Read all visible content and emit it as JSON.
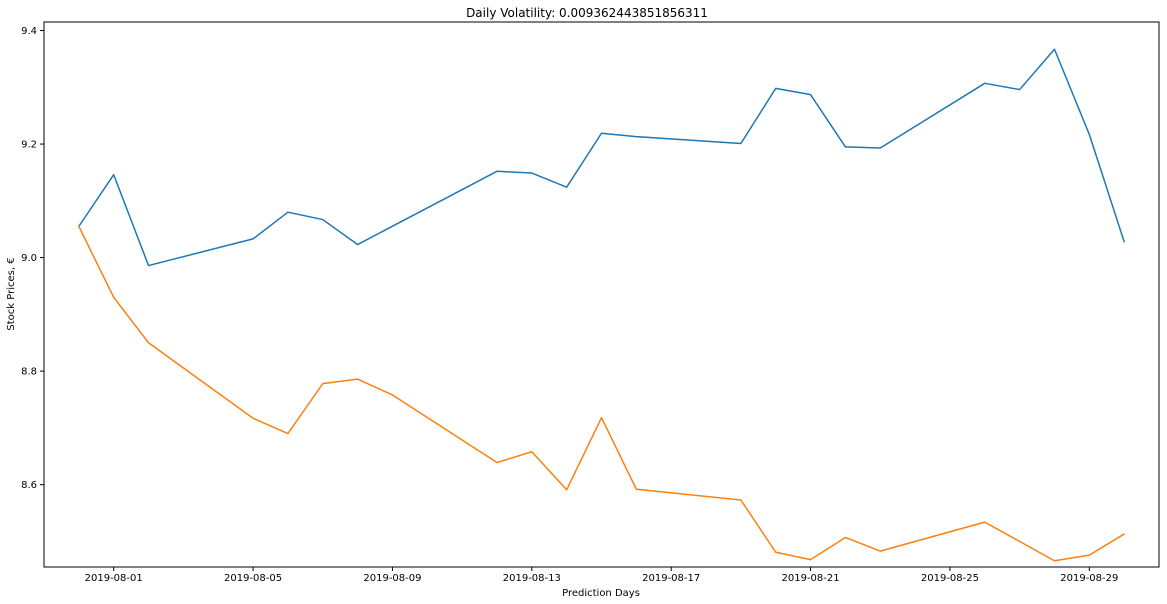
{
  "chart_data": {
    "type": "line",
    "title": "Daily Volatility: 0.009362443851856311",
    "xlabel": "Prediction Days",
    "ylabel": "Stock Prices, €",
    "x_axis_type": "date",
    "xlim": [
      "2019-07-30",
      "2019-08-31"
    ],
    "ylim": [
      8.455,
      9.415
    ],
    "x_ticks": [
      "2019-08-01",
      "2019-08-05",
      "2019-08-09",
      "2019-08-13",
      "2019-08-17",
      "2019-08-21",
      "2019-08-25",
      "2019-08-29"
    ],
    "x_tick_labels": [
      "2019-08-01",
      "2019-08-05",
      "2019-08-09",
      "2019-08-13",
      "2019-08-17",
      "2019-08-21",
      "2019-08-25",
      "2019-08-29"
    ],
    "y_ticks": [
      8.6,
      8.8,
      9.0,
      9.2,
      9.4
    ],
    "y_tick_labels": [
      "8.6",
      "8.8",
      "9.0",
      "9.2",
      "9.4"
    ],
    "grid": false,
    "legend": "none",
    "series": [
      {
        "color": "#1f77b4",
        "points": [
          {
            "x": "2019-07-31",
            "y": 9.055
          },
          {
            "x": "2019-08-01",
            "y": 9.146
          },
          {
            "x": "2019-08-02",
            "y": 8.986
          },
          {
            "x": "2019-08-05",
            "y": 9.033
          },
          {
            "x": "2019-08-06",
            "y": 9.08
          },
          {
            "x": "2019-08-07",
            "y": 9.067
          },
          {
            "x": "2019-08-08",
            "y": 9.023
          },
          {
            "x": "2019-08-12",
            "y": 9.152
          },
          {
            "x": "2019-08-13",
            "y": 9.149
          },
          {
            "x": "2019-08-14",
            "y": 9.124
          },
          {
            "x": "2019-08-15",
            "y": 9.219
          },
          {
            "x": "2019-08-16",
            "y": 9.213
          },
          {
            "x": "2019-08-19",
            "y": 9.201
          },
          {
            "x": "2019-08-20",
            "y": 9.298
          },
          {
            "x": "2019-08-21",
            "y": 9.287
          },
          {
            "x": "2019-08-22",
            "y": 9.195
          },
          {
            "x": "2019-08-23",
            "y": 9.193
          },
          {
            "x": "2019-08-26",
            "y": 9.307
          },
          {
            "x": "2019-08-27",
            "y": 9.296
          },
          {
            "x": "2019-08-28",
            "y": 9.367
          },
          {
            "x": "2019-08-29",
            "y": 9.217
          },
          {
            "x": "2019-08-30",
            "y": 9.028
          }
        ]
      },
      {
        "color": "#ff7f0e",
        "points": [
          {
            "x": "2019-07-31",
            "y": 9.055
          },
          {
            "x": "2019-08-01",
            "y": 8.93
          },
          {
            "x": "2019-08-02",
            "y": 8.85
          },
          {
            "x": "2019-08-05",
            "y": 8.717
          },
          {
            "x": "2019-08-06",
            "y": 8.69
          },
          {
            "x": "2019-08-07",
            "y": 8.778
          },
          {
            "x": "2019-08-08",
            "y": 8.786
          },
          {
            "x": "2019-08-09",
            "y": 8.758
          },
          {
            "x": "2019-08-12",
            "y": 8.639
          },
          {
            "x": "2019-08-13",
            "y": 8.658
          },
          {
            "x": "2019-08-14",
            "y": 8.591
          },
          {
            "x": "2019-08-15",
            "y": 8.718
          },
          {
            "x": "2019-08-16",
            "y": 8.592
          },
          {
            "x": "2019-08-19",
            "y": 8.573
          },
          {
            "x": "2019-08-20",
            "y": 8.481
          },
          {
            "x": "2019-08-21",
            "y": 8.468
          },
          {
            "x": "2019-08-22",
            "y": 8.507
          },
          {
            "x": "2019-08-23",
            "y": 8.483
          },
          {
            "x": "2019-08-26",
            "y": 8.534
          },
          {
            "x": "2019-08-28",
            "y": 8.466
          },
          {
            "x": "2019-08-29",
            "y": 8.476
          },
          {
            "x": "2019-08-30",
            "y": 8.513
          }
        ]
      }
    ]
  }
}
